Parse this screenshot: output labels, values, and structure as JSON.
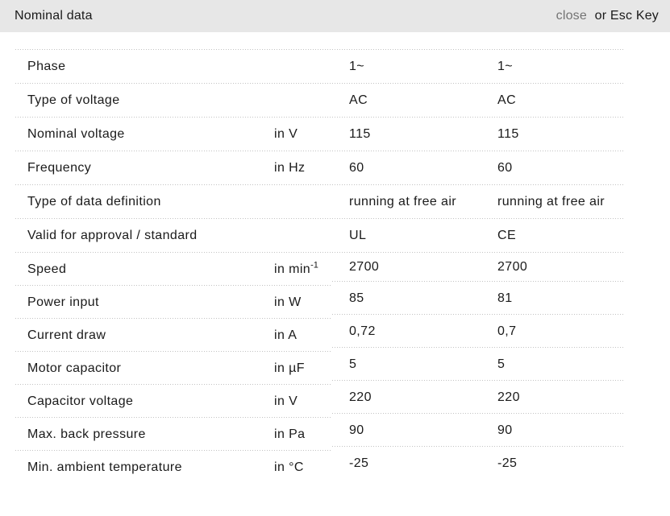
{
  "header": {
    "title": "Nominal data",
    "close_label": "close",
    "esc_label": "or Esc Key"
  },
  "colors": {
    "header_bg": "#e7e7e7",
    "text": "#1a1a1a",
    "close_link": "#737373",
    "divider_dots": "#c2c2c2",
    "page_bg": "#ffffff"
  },
  "table": {
    "rows": [
      {
        "label": "Phase",
        "unit": "",
        "unit_sup": "",
        "values": [
          "1~",
          "1~"
        ]
      },
      {
        "label": "Type of voltage",
        "unit": "",
        "unit_sup": "",
        "values": [
          "AC",
          "AC"
        ]
      },
      {
        "label": "Nominal voltage",
        "unit": "in V",
        "unit_sup": "",
        "values": [
          "115",
          "115"
        ]
      },
      {
        "label": "Frequency",
        "unit": "in Hz",
        "unit_sup": "",
        "values": [
          "60",
          "60"
        ]
      },
      {
        "label": "Type of data definition",
        "unit": "",
        "unit_sup": "",
        "values": [
          "running at free air",
          "running at free air"
        ]
      },
      {
        "label": "Valid for approval / standard",
        "unit": "",
        "unit_sup": "",
        "values": [
          "UL",
          "CE"
        ]
      },
      {
        "label": "Speed",
        "unit": "in min",
        "unit_sup": "-1",
        "values": [
          "2700",
          "2700"
        ]
      },
      {
        "label": "Power input",
        "unit": "in W",
        "unit_sup": "",
        "values": [
          "85",
          "81"
        ]
      },
      {
        "label": "Current draw",
        "unit": "in A",
        "unit_sup": "",
        "values": [
          "0,72",
          "0,7"
        ]
      },
      {
        "label": "Motor capacitor",
        "unit": "in µF",
        "unit_sup": "",
        "values": [
          "5",
          "5"
        ]
      },
      {
        "label": "Capacitor voltage",
        "unit": "in V",
        "unit_sup": "",
        "values": [
          "220",
          "220"
        ]
      },
      {
        "label": "Max. back pressure",
        "unit": "in Pa",
        "unit_sup": "",
        "values": [
          "90",
          "90"
        ]
      },
      {
        "label": "Min. ambient temperature",
        "unit": "in °C",
        "unit_sup": "",
        "values": [
          "-25",
          "-25"
        ]
      }
    ]
  }
}
